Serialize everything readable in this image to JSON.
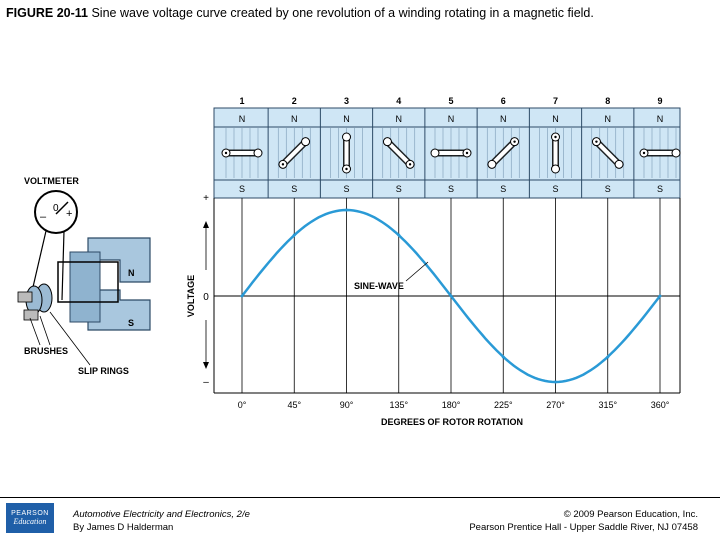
{
  "caption": {
    "figure_number": "FIGURE 20-11",
    "text": "Sine wave voltage curve created by one revolution of a winding rotating in a magnetic field."
  },
  "diagram": {
    "voltmeter_label": "VOLTMETER",
    "brushes_label": "BRUSHES",
    "slip_rings_label": "SLIP RINGS",
    "generator_north": "N",
    "generator_south": "S",
    "meter_zero": "0",
    "meter_minus": "–",
    "meter_plus": "+",
    "positions": [
      "1",
      "2",
      "3",
      "4",
      "5",
      "6",
      "7",
      "8",
      "9"
    ],
    "pole_north": "N",
    "pole_south": "S",
    "y_axis_label": "VOLTAGE",
    "y_ticks": [
      "+",
      "0",
      "–"
    ],
    "x_ticks": [
      "0°",
      "45°",
      "90°",
      "135°",
      "180°",
      "225°",
      "270°",
      "315°",
      "360°"
    ],
    "x_axis_label": "DEGREES OF ROTOR ROTATION",
    "curve_label": "SINE-WAVE",
    "curve_color": "#2a9ad6",
    "band_color": "#cfe6f5"
  },
  "chart_data": {
    "type": "line",
    "x": [
      0,
      45,
      90,
      135,
      180,
      225,
      270,
      315,
      360
    ],
    "values": [
      0,
      0.71,
      1,
      0.71,
      0,
      -0.71,
      -1,
      -0.71,
      0
    ],
    "xlabel": "DEGREES OF ROTOR ROTATION",
    "ylabel": "VOLTAGE"
  },
  "footer": {
    "logo_top": "PEARSON",
    "logo_bottom": "Education",
    "book_title": "Automotive Electricity and Electronics, 2/e",
    "author": "By James D Halderman",
    "copyright": "© 2009 Pearson Education, Inc.",
    "publisher": "Pearson Prentice Hall - Upper Saddle River, NJ 07458"
  }
}
